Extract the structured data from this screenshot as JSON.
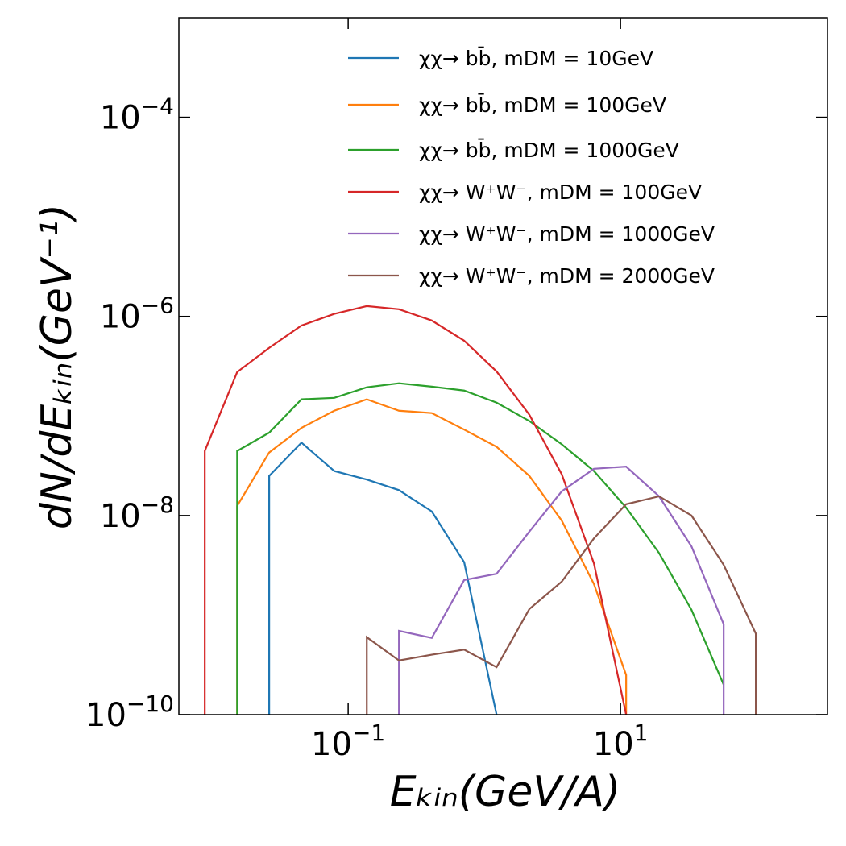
{
  "chart_data": {
    "type": "line",
    "xlabel": "Eₖᵢₙ(GeV/A)",
    "ylabel": "dN/dEₖᵢₙ(GeV⁻¹)",
    "xscale": "log",
    "yscale": "log",
    "xlim": [
      0.00571,
      331
    ],
    "ylim": [
      1e-10,
      0.001
    ],
    "xticks": [
      {
        "value": 0.1,
        "label": "10",
        "exponent": "−1"
      },
      {
        "value": 10,
        "label": "10",
        "exponent": "1"
      }
    ],
    "yticks": [
      {
        "value": 1e-10,
        "label": "10",
        "exponent": "−10"
      },
      {
        "value": 1e-08,
        "label": "10",
        "exponent": "−8"
      },
      {
        "value": 1e-06,
        "label": "10",
        "exponent": "−6"
      },
      {
        "value": 0.0001,
        "label": "10",
        "exponent": "−4"
      }
    ],
    "grid": false,
    "legend": "upper right",
    "series": [
      {
        "name": "χχ→ bb̄, mDM = 10GeV",
        "color": "#1f77b4",
        "x": [
          0.0263,
          0.0263,
          0.0454,
          0.079,
          0.137,
          0.236,
          0.411,
          0.711,
          1.23
        ],
        "values": [
          1e-10,
          2.5e-08,
          5.4e-08,
          2.8e-08,
          2.3e-08,
          1.8e-08,
          1.1e-08,
          3.4e-09,
          1e-10
        ]
      },
      {
        "name": "χχ→ bb̄, mDM = 100GeV",
        "color": "#ff7f0e",
        "x": [
          0.0153,
          0.0153,
          0.0263,
          0.0454,
          0.079,
          0.137,
          0.236,
          0.411,
          0.711,
          1.23,
          2.14,
          3.7,
          6.38,
          11.0,
          11.0
        ],
        "values": [
          1e-10,
          1.25e-08,
          4.3e-08,
          7.6e-08,
          1.13e-07,
          1.47e-07,
          1.13e-07,
          1.07e-07,
          7.3e-08,
          4.9e-08,
          2.5e-08,
          8.9e-09,
          2.05e-09,
          2.5e-10,
          1e-10
        ]
      },
      {
        "name": "χχ→ bb̄, mDM = 1000GeV",
        "color": "#2ca02c",
        "x": [
          0.0153,
          0.0153,
          0.0263,
          0.0454,
          0.079,
          0.137,
          0.236,
          0.411,
          0.711,
          1.23,
          2.14,
          3.7,
          6.38,
          11.0,
          19.2,
          33.2,
          57.2
        ],
        "values": [
          1e-10,
          4.45e-08,
          6.8e-08,
          1.47e-07,
          1.52e-07,
          1.94e-07,
          2.13e-07,
          1.97e-07,
          1.8e-07,
          1.36e-07,
          8.9e-08,
          5.2e-08,
          2.8e-08,
          1.2e-08,
          4.2e-09,
          1.13e-09,
          2e-10
        ]
      },
      {
        "name": "χχ→ W⁺W⁻, mDM = 100GeV",
        "color": "#d62728",
        "x": [
          0.00885,
          0.00885,
          0.0153,
          0.0263,
          0.0454,
          0.079,
          0.137,
          0.236,
          0.411,
          0.711,
          1.23,
          2.14,
          3.7,
          6.38,
          11.0
        ],
        "values": [
          1e-10,
          4.45e-08,
          2.76e-07,
          4.83e-07,
          8.1e-07,
          1.06e-06,
          1.27e-06,
          1.18e-06,
          9.1e-07,
          5.7e-07,
          2.8e-07,
          1.03e-07,
          2.6e-08,
          3.3e-09,
          1e-10
        ]
      },
      {
        "name": "χχ→ W⁺W⁻, mDM = 1000GeV",
        "color": "#9467bd",
        "x": [
          0.236,
          0.236,
          0.411,
          0.711,
          1.23,
          2.14,
          3.7,
          6.38,
          11.0,
          19.2,
          33.2,
          57.2,
          57.2
        ],
        "values": [
          1e-10,
          6.95e-10,
          5.9e-10,
          2.25e-09,
          2.6e-09,
          6.9e-09,
          1.75e-08,
          2.95e-08,
          3.1e-08,
          1.56e-08,
          4.9e-09,
          8.1e-10,
          1e-10
        ]
      },
      {
        "name": "χχ→ W⁺W⁻, mDM = 2000GeV",
        "color": "#8c564b",
        "x": [
          0.137,
          0.137,
          0.236,
          0.411,
          0.711,
          1.23,
          2.14,
          3.7,
          6.38,
          11.0,
          19.2,
          33.2,
          57.2,
          98.6,
          98.6
        ],
        "values": [
          1e-10,
          6e-10,
          3.5e-10,
          4e-10,
          4.5e-10,
          3e-10,
          1.15e-09,
          2.17e-09,
          5.9e-09,
          1.3e-08,
          1.56e-08,
          1e-08,
          3.2e-09,
          6.5e-10,
          1e-10
        ]
      }
    ]
  }
}
